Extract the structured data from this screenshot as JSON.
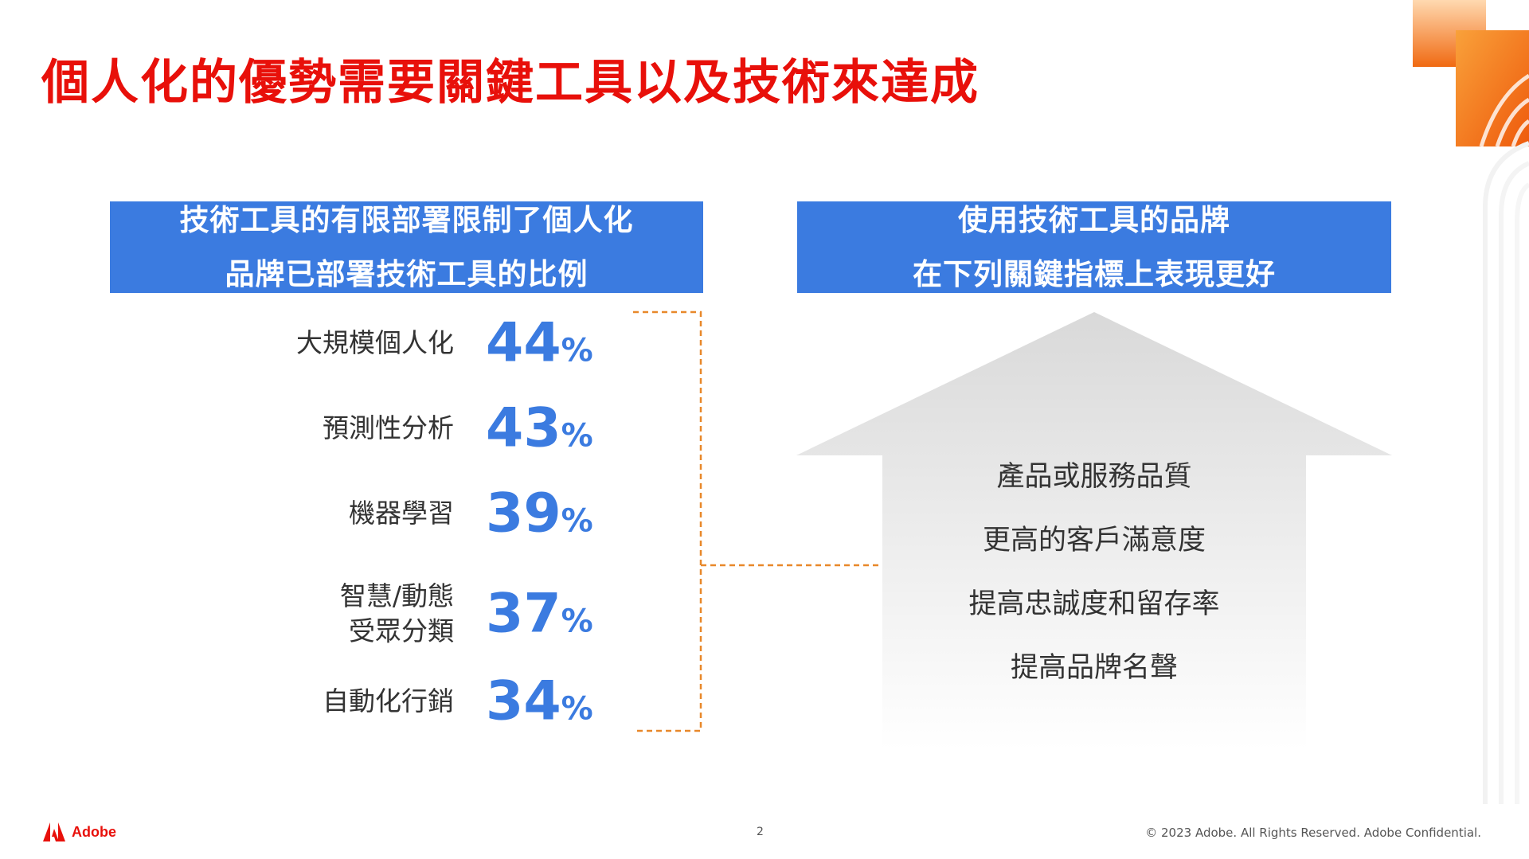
{
  "slide": {
    "title": "個人化的優勢需要關鍵工具以及技術來達成"
  },
  "left_panel": {
    "header_line1": "技術工具的有限部署限制了個人化",
    "header_line2": "品牌已部署技術工具的比例",
    "stats": [
      {
        "label_line1": "大規模個人化",
        "label_line2": "",
        "value": "44",
        "unit": "%"
      },
      {
        "label_line1": "預測性分析",
        "label_line2": "",
        "value": "43",
        "unit": "%"
      },
      {
        "label_line1": "機器學習",
        "label_line2": "",
        "value": "39",
        "unit": "%"
      },
      {
        "label_line1": "智慧/動態",
        "label_line2": "受眾分類",
        "value": "37",
        "unit": "%"
      },
      {
        "label_line1": "自動化行銷",
        "label_line2": "",
        "value": "34",
        "unit": "%"
      }
    ]
  },
  "right_panel": {
    "header_line1": "使用技術工具的品牌",
    "header_line2": "在下列關鍵指標上表現更好",
    "benefits": [
      "產品或服務品質",
      "更高的客戶滿意度",
      "提高忠誠度和留存率",
      "提高品牌名聲"
    ]
  },
  "footer": {
    "brand": "Adobe",
    "page_number": "2",
    "copyright": "© 2023 Adobe. All Rights Reserved. Adobe Confidential."
  },
  "colors": {
    "title_red": "#e8100a",
    "header_blue": "#3b7be0",
    "connector_orange": "#e8882a",
    "deco_orange": "#f07a12"
  }
}
